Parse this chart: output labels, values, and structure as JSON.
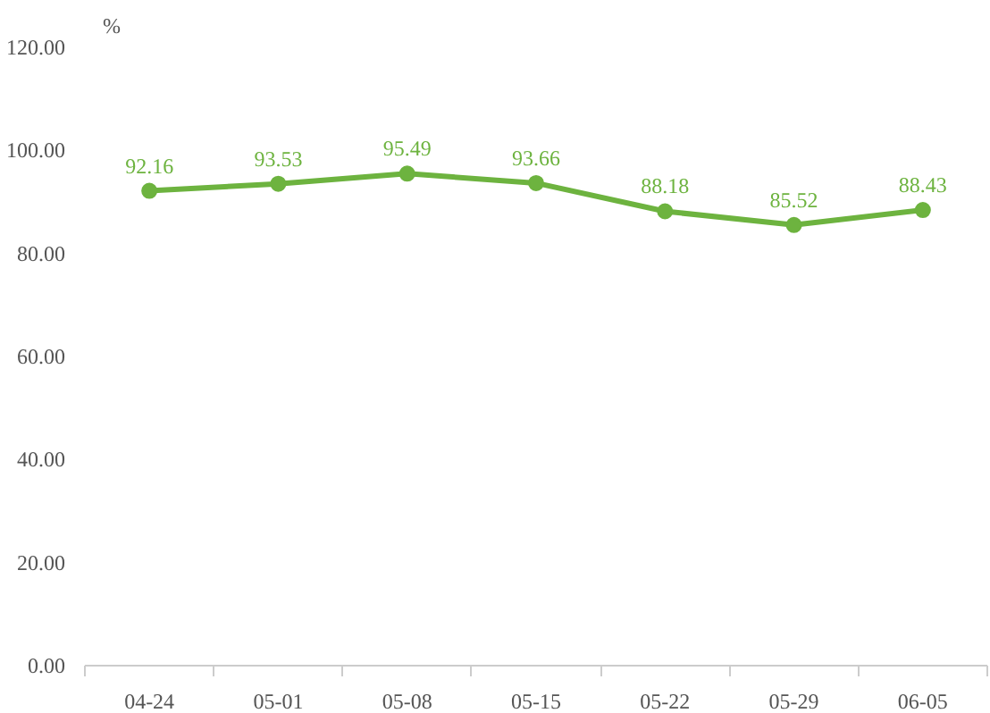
{
  "chart_data": {
    "type": "line",
    "ylabel": "%",
    "categories": [
      "04-24",
      "05-01",
      "05-08",
      "05-15",
      "05-22",
      "05-29",
      "06-05"
    ],
    "series": [
      {
        "color": "#6db33f",
        "values": [
          92.16,
          93.53,
          95.49,
          93.66,
          88.18,
          85.52,
          88.43
        ]
      }
    ],
    "ylim": [
      0,
      120
    ],
    "yticks": [
      {
        "value": 0,
        "label": "0.00"
      },
      {
        "value": 20,
        "label": "20.00"
      },
      {
        "value": 40,
        "label": "40.00"
      },
      {
        "value": 60,
        "label": "60.00"
      },
      {
        "value": 80,
        "label": "80.00"
      },
      {
        "value": 100,
        "label": "100.00"
      },
      {
        "value": 120,
        "label": "120.00"
      }
    ],
    "grid": false,
    "marker": "circle",
    "line_style": "solid",
    "data_labels": true
  }
}
